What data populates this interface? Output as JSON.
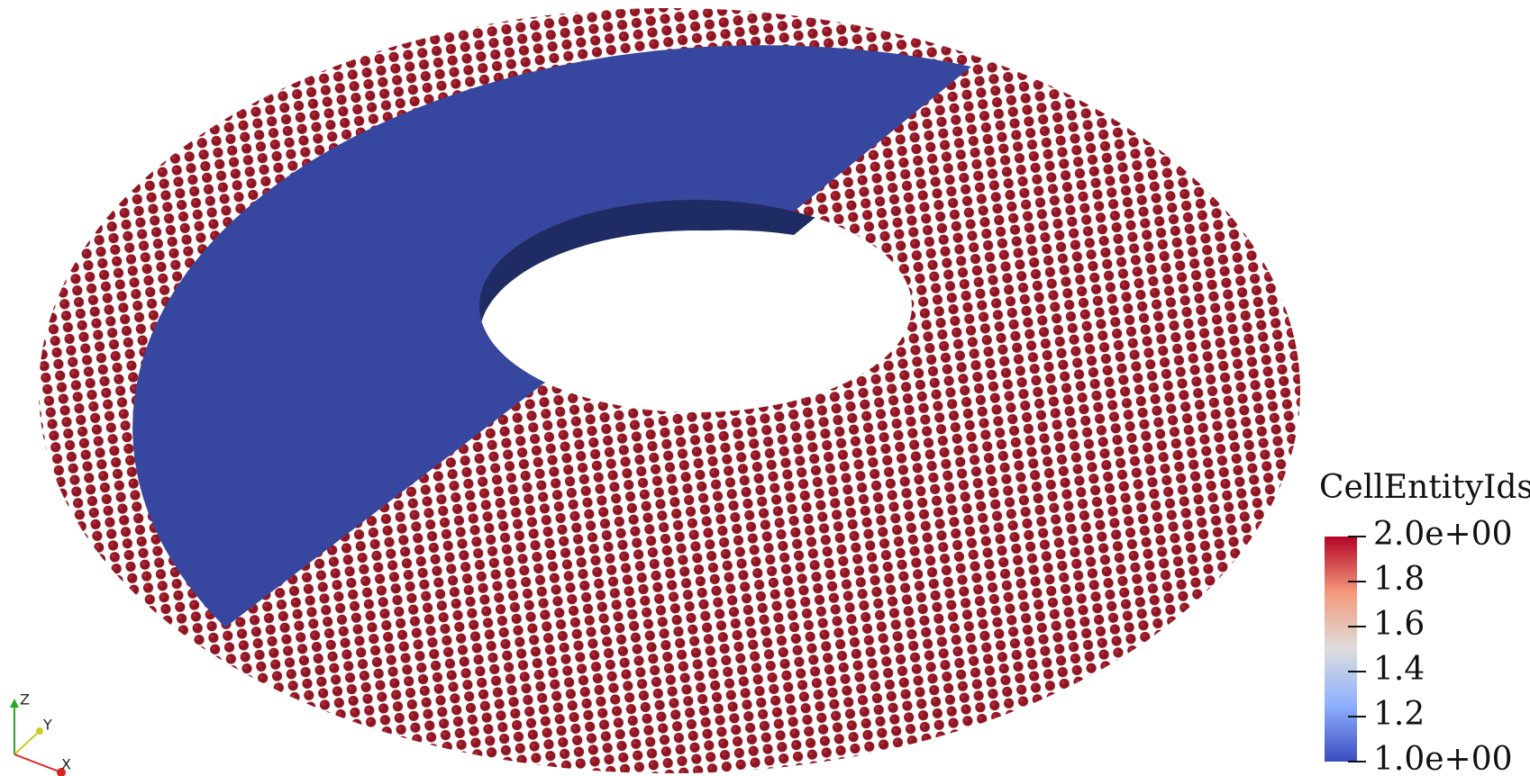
{
  "color_legend": {
    "title": "CellEntityIds",
    "range": [
      1,
      2
    ],
    "ticks": [
      {
        "value": 1,
        "label": "1.0e+00"
      },
      1.2,
      1.4,
      1.6,
      1.8,
      {
        "value": 2,
        "label": "2.0e+00"
      }
    ]
  },
  "axes_widget": {
    "z": "Z",
    "y": "Y",
    "x": "X"
  }
}
